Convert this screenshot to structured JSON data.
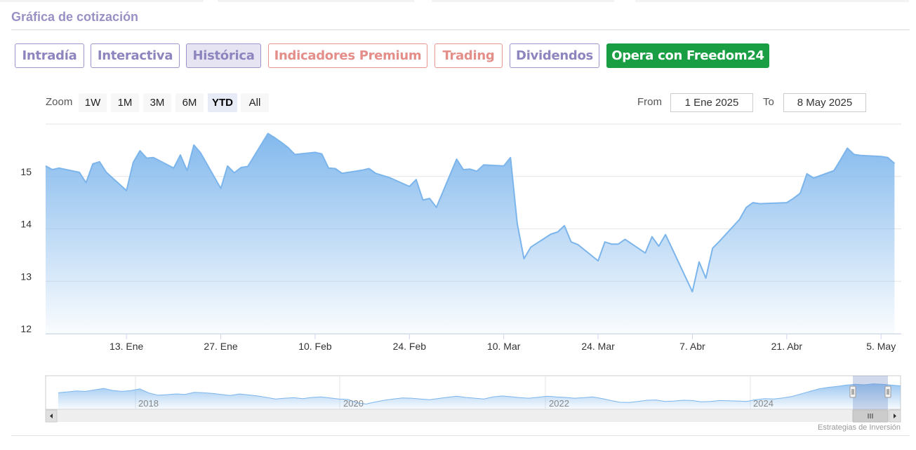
{
  "section_title": "Gráfica de cotización",
  "tabs": [
    {
      "label": "Intradía",
      "style": "purple"
    },
    {
      "label": "Interactiva",
      "style": "purple"
    },
    {
      "label": "Histórica",
      "style": "active"
    },
    {
      "label": "Indicadores Premium",
      "style": "salmon"
    },
    {
      "label": "Trading",
      "style": "salmon"
    },
    {
      "label": "Dividendos",
      "style": "purple"
    },
    {
      "label": "Opera con Freedom24",
      "style": "green"
    }
  ],
  "zoom": {
    "label": "Zoom",
    "options": [
      "1W",
      "1M",
      "3M",
      "6M",
      "YTD",
      "All"
    ],
    "selected": "YTD"
  },
  "range": {
    "from_label": "From",
    "from_value": "1 Ene 2025",
    "to_label": "To",
    "to_value": "8 May 2025"
  },
  "credit": "Estrategias de Inversión",
  "colors": {
    "line": "#7cb5ec",
    "fill_top": "#7cb5ec",
    "grid": "#e6e6e6",
    "accent_purple": "#8d86be",
    "accent_salmon": "#e48e89",
    "accent_green": "#1a9e44"
  },
  "chart_data": {
    "type": "area",
    "title": "",
    "xlabel": "",
    "ylabel": "",
    "x_range": [
      "2025-01-01",
      "2025-05-08"
    ],
    "ylim": [
      12,
      16
    ],
    "y_ticks": [
      12,
      13,
      14,
      15
    ],
    "x_ticks": [
      {
        "date": "2025-01-13",
        "label": "13. Ene"
      },
      {
        "date": "2025-01-27",
        "label": "27. Ene"
      },
      {
        "date": "2025-02-10",
        "label": "10. Feb"
      },
      {
        "date": "2025-02-24",
        "label": "24. Feb"
      },
      {
        "date": "2025-03-10",
        "label": "10. Mar"
      },
      {
        "date": "2025-03-24",
        "label": "24. Mar"
      },
      {
        "date": "2025-04-07",
        "label": "7. Abr"
      },
      {
        "date": "2025-04-21",
        "label": "21. Abr"
      },
      {
        "date": "2025-05-05",
        "label": "5. May"
      }
    ],
    "grid": true,
    "legend": "none",
    "series": [
      {
        "values": [
          [
            "2025-01-01",
            15.2
          ],
          [
            "2025-01-02",
            15.13
          ],
          [
            "2025-01-03",
            15.16
          ],
          [
            "2025-01-06",
            15.08
          ],
          [
            "2025-01-07",
            14.88
          ],
          [
            "2025-01-08",
            15.24
          ],
          [
            "2025-01-09",
            15.28
          ],
          [
            "2025-01-10",
            15.08
          ],
          [
            "2025-01-13",
            14.73
          ],
          [
            "2025-01-14",
            15.27
          ],
          [
            "2025-01-15",
            15.49
          ],
          [
            "2025-01-16",
            15.35
          ],
          [
            "2025-01-17",
            15.36
          ],
          [
            "2025-01-20",
            15.16
          ],
          [
            "2025-01-21",
            15.41
          ],
          [
            "2025-01-22",
            15.11
          ],
          [
            "2025-01-23",
            15.6
          ],
          [
            "2025-01-24",
            15.45
          ],
          [
            "2025-01-27",
            14.77
          ],
          [
            "2025-01-28",
            15.2
          ],
          [
            "2025-01-29",
            15.07
          ],
          [
            "2025-01-30",
            15.17
          ],
          [
            "2025-01-31",
            15.19
          ],
          [
            "2025-02-03",
            15.82
          ],
          [
            "2025-02-04",
            15.74
          ],
          [
            "2025-02-05",
            15.65
          ],
          [
            "2025-02-06",
            15.55
          ],
          [
            "2025-02-07",
            15.42
          ],
          [
            "2025-02-10",
            15.46
          ],
          [
            "2025-02-11",
            15.43
          ],
          [
            "2025-02-12",
            15.16
          ],
          [
            "2025-02-13",
            15.15
          ],
          [
            "2025-02-14",
            15.06
          ],
          [
            "2025-02-17",
            15.12
          ],
          [
            "2025-02-18",
            15.15
          ],
          [
            "2025-02-19",
            15.06
          ],
          [
            "2025-02-20",
            15.02
          ],
          [
            "2025-02-21",
            14.98
          ],
          [
            "2025-02-24",
            14.81
          ],
          [
            "2025-02-25",
            14.94
          ],
          [
            "2025-02-26",
            14.55
          ],
          [
            "2025-02-27",
            14.58
          ],
          [
            "2025-02-28",
            14.41
          ],
          [
            "2025-03-03",
            15.33
          ],
          [
            "2025-03-04",
            15.13
          ],
          [
            "2025-03-05",
            15.14
          ],
          [
            "2025-03-06",
            15.1
          ],
          [
            "2025-03-07",
            15.22
          ],
          [
            "2025-03-10",
            15.2
          ],
          [
            "2025-03-11",
            15.36
          ],
          [
            "2025-03-12",
            14.1
          ],
          [
            "2025-03-13",
            13.43
          ],
          [
            "2025-03-14",
            13.65
          ],
          [
            "2025-03-17",
            13.9
          ],
          [
            "2025-03-18",
            13.94
          ],
          [
            "2025-03-19",
            14.06
          ],
          [
            "2025-03-20",
            13.75
          ],
          [
            "2025-03-21",
            13.7
          ],
          [
            "2025-03-24",
            13.39
          ],
          [
            "2025-03-25",
            13.75
          ],
          [
            "2025-03-26",
            13.71
          ],
          [
            "2025-03-27",
            13.71
          ],
          [
            "2025-03-28",
            13.8
          ],
          [
            "2025-03-31",
            13.54
          ],
          [
            "2025-04-01",
            13.85
          ],
          [
            "2025-04-02",
            13.67
          ],
          [
            "2025-04-03",
            13.89
          ],
          [
            "2025-04-04",
            13.62
          ],
          [
            "2025-04-07",
            12.8
          ],
          [
            "2025-04-08",
            13.37
          ],
          [
            "2025-04-09",
            13.06
          ],
          [
            "2025-04-10",
            13.63
          ],
          [
            "2025-04-11",
            13.76
          ],
          [
            "2025-04-14",
            14.18
          ],
          [
            "2025-04-15",
            14.41
          ],
          [
            "2025-04-16",
            14.5
          ],
          [
            "2025-04-17",
            14.48
          ],
          [
            "2025-04-21",
            14.5
          ],
          [
            "2025-04-22",
            14.58
          ],
          [
            "2025-04-23",
            14.68
          ],
          [
            "2025-04-24",
            15.05
          ],
          [
            "2025-04-25",
            14.97
          ],
          [
            "2025-04-28",
            15.11
          ],
          [
            "2025-04-29",
            15.32
          ],
          [
            "2025-04-30",
            15.54
          ],
          [
            "2025-05-01",
            15.42
          ],
          [
            "2025-05-02",
            15.4
          ],
          [
            "2025-05-05",
            15.38
          ],
          [
            "2025-05-06",
            15.36
          ],
          [
            "2025-05-07",
            15.25
          ]
        ]
      }
    ],
    "navigator": {
      "year_labels": [
        "2018",
        "2020",
        "2022",
        "2024"
      ],
      "values": [
        0.55,
        0.58,
        0.62,
        0.6,
        0.66,
        0.72,
        0.64,
        0.6,
        0.63,
        0.7,
        0.54,
        0.45,
        0.47,
        0.5,
        0.48,
        0.56,
        0.55,
        0.52,
        0.48,
        0.44,
        0.5,
        0.46,
        0.42,
        0.36,
        0.3,
        0.33,
        0.35,
        0.31,
        0.36,
        0.38,
        0.34,
        0.3,
        0.28,
        0.15,
        0.1,
        0.18,
        0.25,
        0.3,
        0.34,
        0.33,
        0.3,
        0.27,
        0.32,
        0.37,
        0.41,
        0.36,
        0.33,
        0.3,
        0.38,
        0.42,
        0.39,
        0.35,
        0.33,
        0.37,
        0.41,
        0.38,
        0.36,
        0.33,
        0.35,
        0.38,
        0.32,
        0.24,
        0.17,
        0.16,
        0.2,
        0.25,
        0.26,
        0.2,
        0.22,
        0.25,
        0.24,
        0.19,
        0.2,
        0.24,
        0.23,
        0.22,
        0.2,
        0.27,
        0.31,
        0.3,
        0.34,
        0.4,
        0.5,
        0.6,
        0.7,
        0.76,
        0.8,
        0.85,
        0.88,
        0.86,
        0.9,
        0.88,
        0.85,
        0.82
      ]
    }
  }
}
